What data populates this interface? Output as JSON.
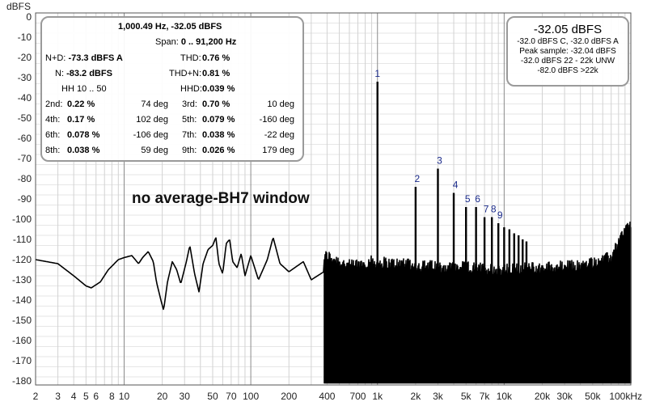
{
  "chart_data": {
    "type": "line",
    "xscale": "log",
    "xlim": [
      2,
      100000
    ],
    "ylim": [
      -182,
      2
    ],
    "ylabel": "dBFS",
    "yticks": [
      0,
      -10,
      -20,
      -30,
      -40,
      -50,
      -60,
      -70,
      -80,
      -90,
      -100,
      -110,
      -120,
      -130,
      -140,
      -150,
      -160,
      -170,
      -180
    ],
    "xticks": [
      {
        "v": 2,
        "label": "2"
      },
      {
        "v": 3,
        "label": "3"
      },
      {
        "v": 4,
        "label": "4"
      },
      {
        "v": 5,
        "label": "5"
      },
      {
        "v": 6,
        "label": "6"
      },
      {
        "v": 8,
        "label": "8"
      },
      {
        "v": 10,
        "label": "10"
      },
      {
        "v": 20,
        "label": "20"
      },
      {
        "v": 30,
        "label": "30"
      },
      {
        "v": 50,
        "label": "50"
      },
      {
        "v": 70,
        "label": "70"
      },
      {
        "v": 100,
        "label": "100"
      },
      {
        "v": 200,
        "label": "200"
      },
      {
        "v": 400,
        "label": "400"
      },
      {
        "v": 700,
        "label": "700"
      },
      {
        "v": 1000,
        "label": "1k"
      },
      {
        "v": 2000,
        "label": "2k"
      },
      {
        "v": 3000,
        "label": "3k"
      },
      {
        "v": 5000,
        "label": "5k"
      },
      {
        "v": 7000,
        "label": "7k"
      },
      {
        "v": 10000,
        "label": "10k"
      },
      {
        "v": 20000,
        "label": "20k"
      },
      {
        "v": 30000,
        "label": "30k"
      },
      {
        "v": 50000,
        "label": "50k"
      },
      {
        "v": 100000,
        "label": "100kHz"
      }
    ],
    "grid": true,
    "annotation": "no average-BH7 window",
    "envelope": [
      {
        "f": 2,
        "db": -120
      },
      {
        "f": 3,
        "db": -122
      },
      {
        "f": 4,
        "db": -128
      },
      {
        "f": 5,
        "db": -133
      },
      {
        "f": 5.5,
        "db": -134
      },
      {
        "f": 6.5,
        "db": -131
      },
      {
        "f": 7.5,
        "db": -125
      },
      {
        "f": 9,
        "db": -120
      },
      {
        "f": 10,
        "db": -119
      },
      {
        "f": 11.5,
        "db": -118
      },
      {
        "f": 13,
        "db": -122
      },
      {
        "f": 14,
        "db": -119
      },
      {
        "f": 15.5,
        "db": -116
      },
      {
        "f": 17,
        "db": -121
      },
      {
        "f": 18,
        "db": -131
      },
      {
        "f": 19.5,
        "db": -140
      },
      {
        "f": 20.5,
        "db": -145
      },
      {
        "f": 22,
        "db": -131
      },
      {
        "f": 24,
        "db": -121
      },
      {
        "f": 26,
        "db": -125
      },
      {
        "f": 28,
        "db": -132
      },
      {
        "f": 31,
        "db": -121
      },
      {
        "f": 33,
        "db": -113
      },
      {
        "f": 36,
        "db": -127
      },
      {
        "f": 39,
        "db": -136
      },
      {
        "f": 42,
        "db": -122
      },
      {
        "f": 46,
        "db": -115
      },
      {
        "f": 50,
        "db": -113
      },
      {
        "f": 53,
        "db": -109
      },
      {
        "f": 56,
        "db": -122
      },
      {
        "f": 60,
        "db": -127
      },
      {
        "f": 64,
        "db": -112
      },
      {
        "f": 68,
        "db": -110
      },
      {
        "f": 72,
        "db": -121
      },
      {
        "f": 78,
        "db": -124
      },
      {
        "f": 84,
        "db": -117
      },
      {
        "f": 90,
        "db": -128
      },
      {
        "f": 100,
        "db": -118
      },
      {
        "f": 115,
        "db": -130
      },
      {
        "f": 135,
        "db": -120
      },
      {
        "f": 150,
        "db": -109
      },
      {
        "f": 170,
        "db": -122
      },
      {
        "f": 200,
        "db": -126
      },
      {
        "f": 260,
        "db": -121
      },
      {
        "f": 300,
        "db": -130
      },
      {
        "f": 400,
        "db": -125
      },
      {
        "f": 600,
        "db": -130
      },
      {
        "f": 900,
        "db": -128
      },
      {
        "f": 2000,
        "db": -130
      },
      {
        "f": 5000,
        "db": -131
      },
      {
        "f": 10000,
        "db": -132
      },
      {
        "f": 20000,
        "db": -131
      },
      {
        "f": 40000,
        "db": -130
      },
      {
        "f": 70000,
        "db": -126
      },
      {
        "f": 90000,
        "db": -112
      },
      {
        "f": 100000,
        "db": -111
      }
    ],
    "peaks": [
      {
        "f": 1000,
        "db": -32,
        "label": "1"
      },
      {
        "f": 2000,
        "db": -84,
        "label": "2"
      },
      {
        "f": 3000,
        "db": -75,
        "label": "3"
      },
      {
        "f": 4000,
        "db": -87,
        "label": "4"
      },
      {
        "f": 5000,
        "db": -94,
        "label": "5"
      },
      {
        "f": 6000,
        "db": -94,
        "label": "6"
      },
      {
        "f": 7000,
        "db": -99,
        "label": "7"
      },
      {
        "f": 8000,
        "db": -99,
        "label": "8"
      },
      {
        "f": 9000,
        "db": -102,
        "label": "9"
      },
      {
        "f": 10000,
        "db": -104,
        "label": ""
      },
      {
        "f": 11000,
        "db": -105,
        "label": ""
      },
      {
        "f": 12000,
        "db": -107,
        "label": ""
      },
      {
        "f": 13000,
        "db": -108,
        "label": ""
      },
      {
        "f": 14000,
        "db": -110,
        "label": ""
      },
      {
        "f": 15000,
        "db": -111,
        "label": ""
      }
    ]
  },
  "measurements": {
    "header": "1,000.49 Hz, -32.05 dBFS",
    "span_label": "Span:",
    "span_value": "0 .. 91,200 Hz",
    "nd_label": "N+D:",
    "nd_value": "-73.3 dBFS A",
    "n_label": "N:",
    "n_value": "-83.2 dBFS",
    "thd_label": "THD:",
    "thd_value": "0.76 %",
    "thdn_label": "THD+N:",
    "thdn_value": "0.81 %",
    "hh_label": "HH 10 .. 50",
    "hhd_label": "HHD:",
    "hhd_value": "0.039 %",
    "harmonics": [
      {
        "n": "2nd:",
        "pct": "0.22 %",
        "deg": "74 deg",
        "n2": "3rd:",
        "pct2": "0.70 %",
        "deg2": "10 deg"
      },
      {
        "n": "4th:",
        "pct": "0.17 %",
        "deg": "102 deg",
        "n2": "5th:",
        "pct2": "0.079 %",
        "deg2": "-160 deg"
      },
      {
        "n": "6th:",
        "pct": "0.078 %",
        "deg": "-106 deg",
        "n2": "7th:",
        "pct2": "0.038 %",
        "deg2": "-22 deg"
      },
      {
        "n": "8th:",
        "pct": "0.038 %",
        "deg": "59 deg",
        "n2": "9th:",
        "pct2": "0.026 %",
        "deg2": "179 deg"
      }
    ]
  },
  "level": {
    "main": "-32.05 dBFS",
    "line1": "-32.0 dBFS C, -32.0 dBFS A",
    "line2": "Peak sample: -32.04 dBFS",
    "line3": "-32.0 dBFS 22 - 22k UNW",
    "line4": "-82.0 dBFS >22k"
  }
}
